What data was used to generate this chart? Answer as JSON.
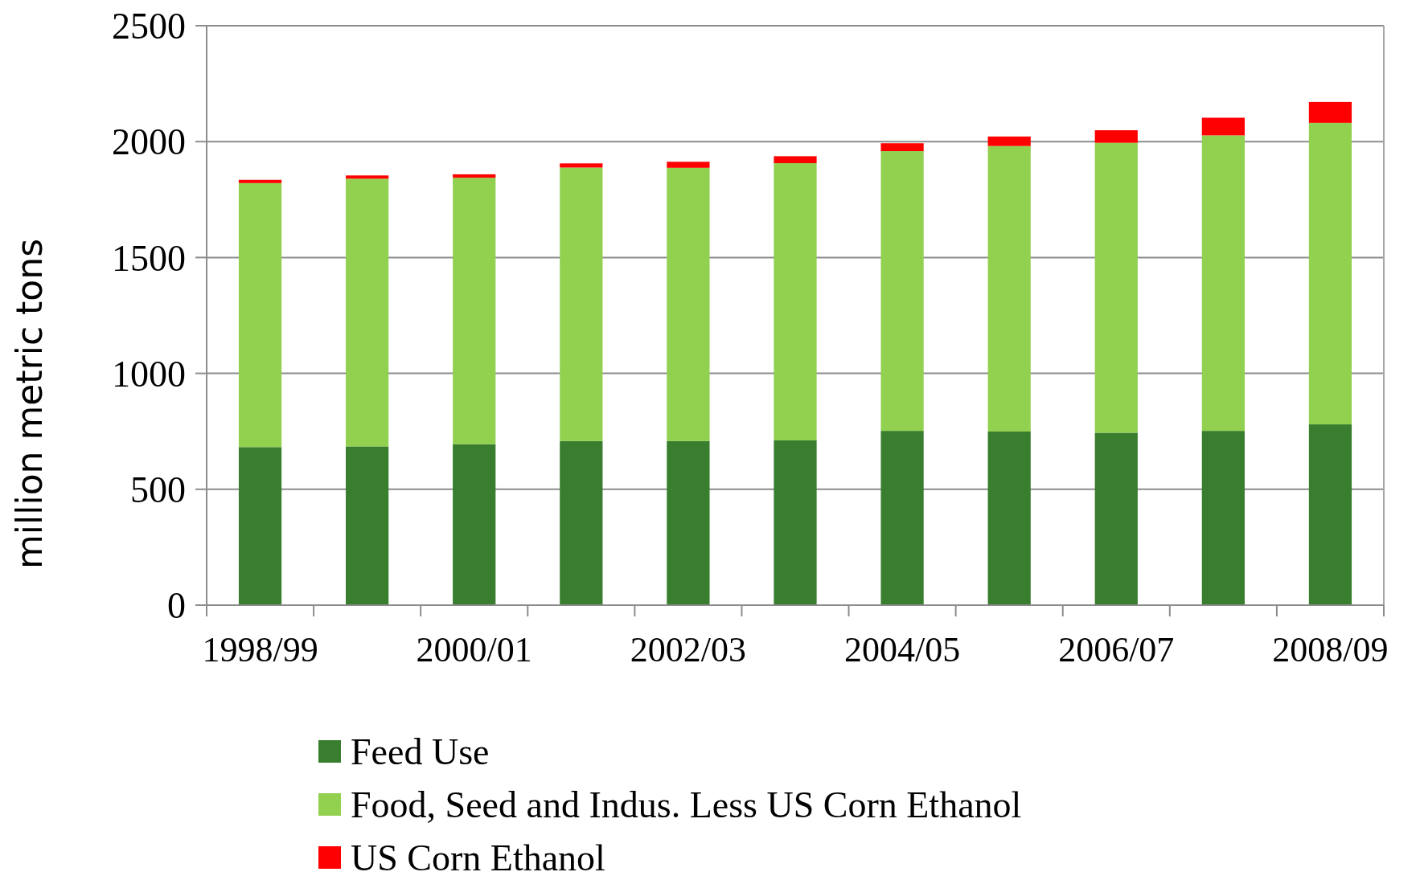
{
  "chart_data": {
    "type": "bar",
    "stacked": true,
    "ylabel": "million metric tons",
    "categories": [
      "1998/99",
      null,
      "2000/01",
      null,
      "2002/03",
      null,
      "2004/05",
      null,
      "2006/07",
      null,
      "2008/09"
    ],
    "series": [
      {
        "name": "Feed Use",
        "color": "#387e2e",
        "values": [
          682,
          685,
          694,
          708,
          708,
          711,
          752,
          749,
          744,
          752,
          780
        ]
      },
      {
        "name": "Food, Seed and Indus. Less US Corn Ethanol",
        "color": "#92d050",
        "values": [
          1139,
          1155,
          1150,
          1180,
          1179,
          1196,
          1207,
          1232,
          1251,
          1275,
          1301
        ]
      },
      {
        "name": "US Corn Ethanol",
        "color": "#ff0000",
        "values": [
          14,
          14,
          15,
          18,
          26,
          30,
          34,
          41,
          54,
          76,
          90
        ]
      }
    ],
    "ylim": [
      0,
      2500
    ],
    "yticks": [
      0,
      500,
      1000,
      1500,
      2000,
      2500
    ],
    "grid": "y",
    "legend": "bottom"
  }
}
